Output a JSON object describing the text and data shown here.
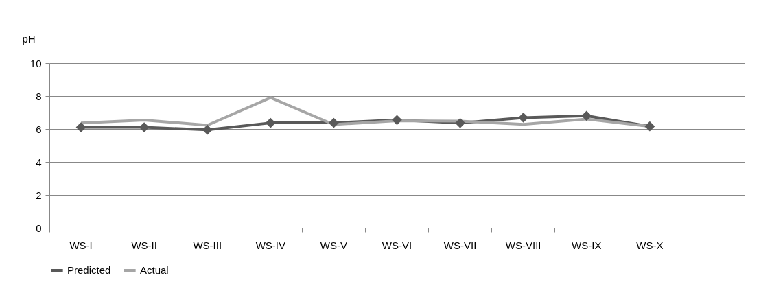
{
  "chart_data": {
    "type": "line",
    "ylabel": "pH",
    "categories": [
      "WS-I",
      "WS-II",
      "WS-III",
      "WS-IV",
      "WS-V",
      "WS-VI",
      "WS-VII",
      "WS-VIII",
      "WS-IX",
      "WS-X",
      null
    ],
    "series": [
      {
        "name": "Predicted",
        "color": "#595959",
        "marker": "diamond",
        "values": [
          6.1,
          6.1,
          5.95,
          6.37,
          6.37,
          6.55,
          6.36,
          6.69,
          6.8,
          6.16,
          null
        ]
      },
      {
        "name": "Actual",
        "color": "#a6a6a6",
        "marker": "none",
        "values": [
          6.36,
          6.54,
          6.23,
          7.9,
          6.27,
          6.5,
          6.48,
          6.28,
          6.6,
          6.16,
          null
        ]
      }
    ],
    "ylim": [
      0,
      10
    ],
    "yticks": [
      0,
      2,
      4,
      6,
      8,
      10
    ],
    "grid": "y",
    "legend": "bottom"
  }
}
